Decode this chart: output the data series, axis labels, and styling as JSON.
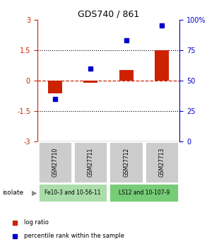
{
  "title": "GDS740 / 861",
  "samples": [
    "GSM27710",
    "GSM27711",
    "GSM27712",
    "GSM27713"
  ],
  "log_ratios": [
    -0.62,
    -0.1,
    0.52,
    1.5
  ],
  "percentile_ranks": [
    35,
    60,
    83,
    95
  ],
  "bar_color": "#cc2200",
  "square_color": "#0000cc",
  "ylim": [
    -3,
    3
  ],
  "yticks_left": [
    -3,
    -1.5,
    0,
    1.5,
    3
  ],
  "ytick_left_labels": [
    "-3",
    "-1.5",
    "0",
    "1.5",
    "3"
  ],
  "yticks_right_pct": [
    0,
    25,
    50,
    75,
    100
  ],
  "ytick_right_labels": [
    "0",
    "25",
    "50",
    "75",
    "100%"
  ],
  "groups": [
    {
      "label": "Fe10-3 and 10-56-11",
      "samples": [
        0,
        1
      ],
      "color": "#aaddaa"
    },
    {
      "label": "LS12 and 10-107-9",
      "samples": [
        2,
        3
      ],
      "color": "#77cc77"
    }
  ],
  "isolate_label": "isolate",
  "legend_items": [
    {
      "label": "log ratio",
      "color": "#cc2200"
    },
    {
      "label": "percentile rank within the sample",
      "color": "#0000cc"
    }
  ],
  "background_color": "#ffffff",
  "tick_color_left": "#cc2200",
  "tick_color_right": "#0000cc",
  "sample_box_color": "#cccccc",
  "bar_width": 0.4
}
